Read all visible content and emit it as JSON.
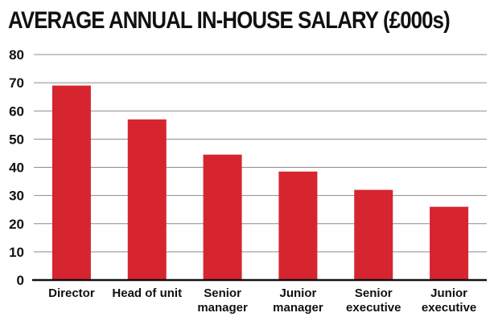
{
  "chart_data": {
    "type": "bar",
    "title": "AVERAGE ANNUAL IN-HOUSE SALARY (£000s)",
    "categories": [
      "Director",
      "Head of unit",
      "Senior manager",
      "Junior manager",
      "Senior executive",
      "Junior executive"
    ],
    "category_lines": [
      [
        "Director"
      ],
      [
        "Head of unit"
      ],
      [
        "Senior",
        "manager"
      ],
      [
        "Junior",
        "manager"
      ],
      [
        "Senior",
        "executive"
      ],
      [
        "Junior",
        "executive"
      ]
    ],
    "values": [
      69,
      57,
      44.5,
      38.5,
      32,
      26
    ],
    "ylim": [
      0,
      80
    ],
    "yticks": [
      0,
      10,
      20,
      30,
      40,
      50,
      60,
      70,
      80
    ],
    "grid": true,
    "legend": "none",
    "xlabel": "",
    "ylabel": ""
  },
  "colors": {
    "bar": "#d6252f",
    "grid": "#8c8c8c",
    "axis": "#111111"
  }
}
